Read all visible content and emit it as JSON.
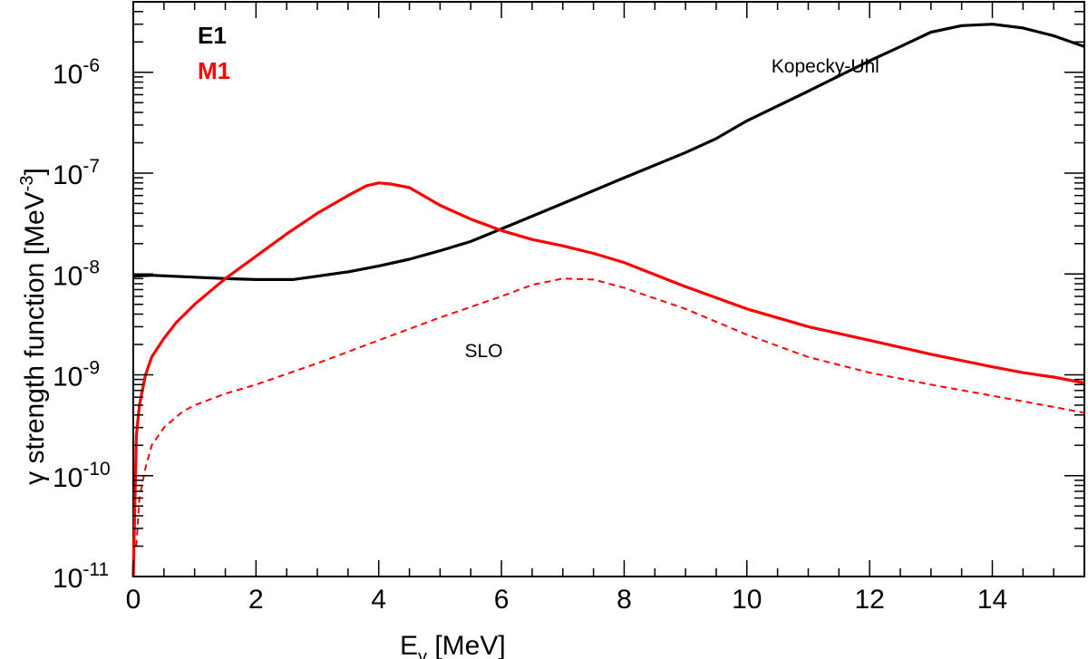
{
  "chart_data": {
    "type": "line",
    "xlabel": {
      "main": "E",
      "sub": "γ",
      "rest": " [MeV]"
    },
    "ylabel": {
      "main": "γ strength function [MeV",
      "sup": "-3",
      "rest": "]"
    },
    "xlim": [
      0,
      15.5
    ],
    "ylim": [
      1e-11,
      5e-06
    ],
    "yscale": "log",
    "xticks": [
      0,
      2,
      4,
      6,
      8,
      10,
      12,
      14
    ],
    "yticks": [
      {
        "value": 1e-11,
        "base": "10",
        "exp": "-11"
      },
      {
        "value": 1e-10,
        "base": "10",
        "exp": "-10"
      },
      {
        "value": 1e-09,
        "base": "10",
        "exp": "-9"
      },
      {
        "value": 1e-08,
        "base": "10",
        "exp": "-8"
      },
      {
        "value": 1e-07,
        "base": "10",
        "exp": "-7"
      },
      {
        "value": 1e-06,
        "base": "10",
        "exp": "-6"
      }
    ],
    "legend": [
      {
        "label": "E1",
        "color": "#000000"
      },
      {
        "label": "M1",
        "color": "#ff0000"
      }
    ],
    "annotations": [
      {
        "text": "Kopecky-Uhl",
        "x": 10.4,
        "y": 1e-06
      },
      {
        "text": "SLO",
        "x": 5.4,
        "y": 1.5e-09
      }
    ],
    "series": [
      {
        "name": "E1 Kopecky-Uhl",
        "color": "#000000",
        "style": "solid",
        "x": [
          0,
          0.3,
          1,
          1.5,
          2,
          2.6,
          3,
          3.5,
          4,
          4.5,
          5,
          5.5,
          6,
          7,
          8,
          9,
          9.5,
          10,
          11,
          12,
          12.5,
          13,
          13.5,
          14,
          14.5,
          15,
          15.5
        ],
        "y": [
          9.5e-09,
          9.7e-09,
          9.3e-09,
          9e-09,
          8.8e-09,
          8.8e-09,
          9.5e-09,
          1.05e-08,
          1.2e-08,
          1.4e-08,
          1.7e-08,
          2.1e-08,
          2.8e-08,
          5e-08,
          9e-08,
          1.6e-07,
          2.2e-07,
          3.3e-07,
          6.5e-07,
          1.3e-06,
          1.8e-06,
          2.5e-06,
          2.9e-06,
          3e-06,
          2.75e-06,
          2.3e-06,
          1.8e-06
        ]
      },
      {
        "name": "M1",
        "color": "#ff0000",
        "style": "solid",
        "x": [
          0,
          0.05,
          0.1,
          0.2,
          0.3,
          0.5,
          0.7,
          1,
          1.5,
          2,
          2.5,
          3,
          3.5,
          3.8,
          4,
          4.2,
          4.5,
          5,
          5.5,
          6,
          6.5,
          7,
          7.5,
          8,
          9,
          10,
          11,
          12,
          13,
          14,
          14.5,
          15,
          15.5
        ],
        "y": [
          1e-11,
          2.5e-10,
          5e-10,
          1e-09,
          1.5e-09,
          2.3e-09,
          3.3e-09,
          5e-09,
          9e-09,
          1.5e-08,
          2.5e-08,
          4e-08,
          6e-08,
          7.5e-08,
          8e-08,
          7.8e-08,
          7.2e-08,
          4.8e-08,
          3.5e-08,
          2.7e-08,
          2.2e-08,
          1.9e-08,
          1.6e-08,
          1.3e-08,
          7.5e-09,
          4.5e-09,
          3e-09,
          2.2e-09,
          1.6e-09,
          1.2e-09,
          1.05e-09,
          9.5e-10,
          8.3e-10
        ]
      },
      {
        "name": "M1 SLO",
        "color": "#ff0000",
        "style": "dashed",
        "x": [
          0.05,
          0.1,
          0.2,
          0.3,
          0.5,
          0.8,
          1,
          1.5,
          2,
          3,
          4,
          5,
          6,
          6.5,
          7,
          7.5,
          8,
          9,
          10,
          11,
          12,
          13,
          14,
          15,
          15.5
        ],
        "y": [
          2e-11,
          6e-11,
          1.2e-10,
          2e-10,
          3e-10,
          4.3e-10,
          5e-10,
          6.5e-10,
          8e-10,
          1.3e-09,
          2.2e-09,
          3.7e-09,
          6e-09,
          7.8e-09,
          9e-09,
          8.8e-09,
          7.3e-09,
          4.5e-09,
          2.5e-09,
          1.5e-09,
          1.05e-09,
          8e-10,
          6.2e-10,
          4.8e-10,
          4.2e-10
        ]
      }
    ]
  }
}
